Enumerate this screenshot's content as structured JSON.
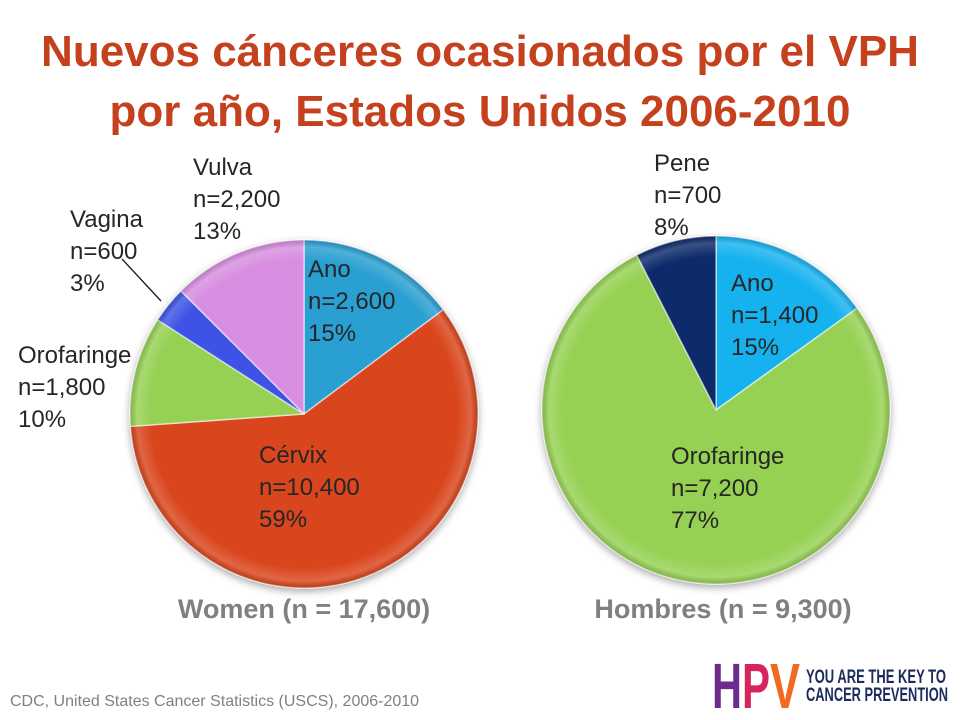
{
  "colors": {
    "title": "#c5411d",
    "label_text": "#262626",
    "caption_text": "#808080",
    "footer_text": "#808080"
  },
  "title": {
    "line1": "Nuevos cánceres ocasionados por el VPH",
    "line2": "por año, Estados Unidos 2006-2010"
  },
  "chart_data": [
    {
      "type": "pie",
      "title": "Women (n = 17,600)",
      "categories": [
        "Ano",
        "Cérvix",
        "Orofaringe",
        "Vagina",
        "Vulva"
      ],
      "values": [
        2600,
        10400,
        1800,
        600,
        2200
      ],
      "value_labels": [
        "n=2,600",
        "n=10,400",
        "n=1,800",
        "n=600",
        "n=2,200"
      ],
      "percent_labels": [
        "15%",
        "59%",
        "10%",
        "3%",
        "13%"
      ],
      "colors": [
        "#2b9fd1",
        "#d9441a",
        "#96d152",
        "#3e52e6",
        "#d78de0"
      ]
    },
    {
      "type": "pie",
      "title": "Hombres (n = 9,300)",
      "categories": [
        "Ano",
        "Orofaringe",
        "Pene"
      ],
      "values": [
        1400,
        7200,
        700
      ],
      "value_labels": [
        "n=1,400",
        "n=7,200",
        "n=700"
      ],
      "percent_labels": [
        "15%",
        "77%",
        "8%"
      ],
      "colors": [
        "#14b2f0",
        "#96d152",
        "#0f2a6b"
      ]
    }
  ],
  "footer": {
    "source": "CDC, United States Cancer Statistics (USCS), 2006-2010"
  },
  "logo": {
    "letters": [
      "H",
      "P",
      "V"
    ],
    "tagline_line1": "YOU ARE THE KEY TO",
    "tagline_line2": "CANCER PREVENTION",
    "colors": {
      "h": "#6c2b8d",
      "p": "#d6245f",
      "v": "#f26a21",
      "tagline": "#1d2a5c"
    }
  }
}
